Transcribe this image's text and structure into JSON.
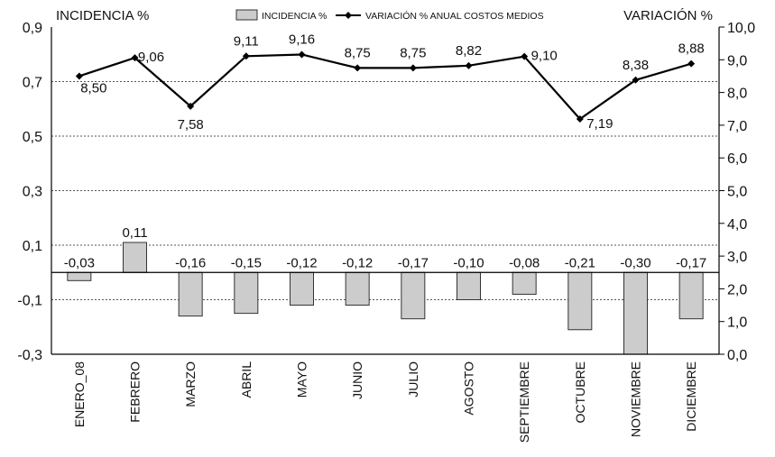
{
  "chart_data": {
    "type": "bar+line",
    "categories": [
      "ENERO_08",
      "FEBRERO",
      "MARZO",
      "ABRIL",
      "MAYO",
      "JUNIO",
      "JULIO",
      "AGOSTO",
      "SEPTIEMBRE",
      "OCTUBRE",
      "NOVIEMBRE",
      "DICIEMBRE"
    ],
    "series": [
      {
        "name": "INCIDENCIA %",
        "type": "bar",
        "axis": "left",
        "values": [
          -0.03,
          0.11,
          -0.16,
          -0.15,
          -0.12,
          -0.12,
          -0.17,
          -0.1,
          -0.08,
          -0.21,
          -0.3,
          -0.17
        ],
        "labels": [
          "-0,03",
          "0,11",
          "-0,16",
          "-0,15",
          "-0,12",
          "-0,12",
          "-0,17",
          "-0,10",
          "-0,08",
          "-0,21",
          "-0,30",
          "-0,17"
        ],
        "color": "#cccccc"
      },
      {
        "name": "VARIACIÓN % ANUAL COSTOS MEDIOS",
        "type": "line",
        "axis": "right",
        "values": [
          8.5,
          9.06,
          7.58,
          9.11,
          9.16,
          8.75,
          8.75,
          8.82,
          9.1,
          7.19,
          8.38,
          8.88
        ],
        "labels": [
          "8,50",
          "9,06",
          "7,58",
          "9,11",
          "9,16",
          "8,75",
          "8,75",
          "8,82",
          "9,10",
          "7,19",
          "8,38",
          "8,88"
        ],
        "color": "#000000"
      }
    ],
    "y_left": {
      "title": "INCIDENCIA %",
      "ylim": [
        -0.3,
        0.9
      ],
      "ticks": [
        0.9,
        0.7,
        0.5,
        0.3,
        0.1,
        -0.1,
        -0.3
      ],
      "tick_labels": [
        "0,9",
        "0,7",
        "0,5",
        "0,3",
        "0,1",
        "-0,1",
        "-0,3"
      ]
    },
    "y_right": {
      "title": "VARIACIÓN %",
      "ylim": [
        0,
        10
      ],
      "ticks": [
        10,
        9,
        8,
        7,
        6,
        5,
        4,
        3,
        2,
        1,
        0
      ],
      "tick_labels": [
        "10,0",
        "9,0",
        "8,0",
        "7,0",
        "6,0",
        "5,0",
        "4,0",
        "3,0",
        "2,0",
        "1,0",
        "0,0"
      ]
    },
    "grid": true,
    "legend": {
      "placement": "top-center"
    }
  }
}
